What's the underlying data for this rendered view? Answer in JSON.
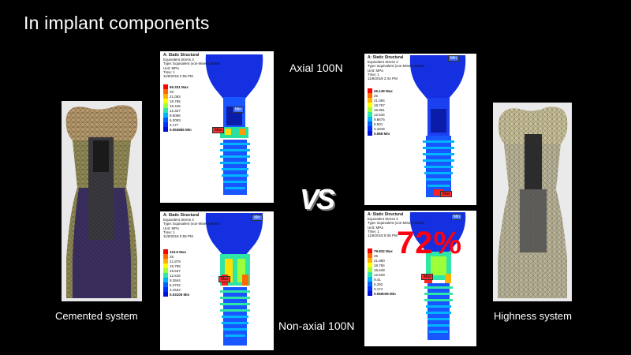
{
  "title": "In implant components",
  "captions": {
    "left": "Cemented system",
    "right": "Highness system"
  },
  "load_labels": {
    "axial": "Axial 100N",
    "non_axial": "Non-axial 100N"
  },
  "vs_label": "VS",
  "percent_label": "72%",
  "panels": {
    "tl": {
      "header": [
        "A: Static Structural",
        "Equivalent Stress 3",
        "Type: Equivalent (von-Mises) Stress",
        "Unit: MPa",
        "Time: 1",
        "11/8/2018 2:55 PM"
      ],
      "max": "65.331 Max",
      "levels": [
        "25",
        "21.083",
        "18.765",
        "15.445",
        "12.327",
        "9.6086",
        "6.2083",
        "3.177"
      ],
      "min": "0.053685 Min",
      "max_tag": "Max",
      "min_tag": "Min"
    },
    "tr": {
      "header": [
        "A: Static Structural",
        "Equivalent Stress 2",
        "Type: Equivalent (von-Mises) Stress",
        "Unit: MPa",
        "Time: 1",
        "11/8/2018 2:44 PM"
      ],
      "max": "26.149 Max",
      "levels": [
        "25",
        "21.084",
        "18.767",
        "15.851",
        "12.534",
        "9.8675",
        "6.501",
        "3.1849"
      ],
      "min": "0.068 Min",
      "max_tag": "Max",
      "min_tag": "Min"
    },
    "bl": {
      "header": [
        "A: Static Structural",
        "Equivalent Stress 3",
        "Type: Equivalent (von-Mises) Stress",
        "Unit: MPa",
        "Time: 1",
        "11/8/2018 5:55 PM"
      ],
      "max": "110.6 Max",
      "levels": [
        "25",
        "21.879",
        "18.758",
        "15.637",
        "12.516",
        "9.3944",
        "6.2733",
        "3.1522"
      ],
      "min": "0.03105 Min",
      "max_tag": "Max",
      "min_tag": "Min"
    },
    "br": {
      "header": [
        "A: Static Structural",
        "Equivalent Stress 2",
        "Type: Equivalent (von-Mises) Stress",
        "Unit: MPa",
        "Time: 1",
        "11/8/2018 5:05 PM"
      ],
      "max": "79.832 Max",
      "levels": [
        "25",
        "21.880",
        "18.784",
        "15.648",
        "12.529",
        "9.41",
        "6.292",
        "3.174"
      ],
      "min": "0.056039 Min",
      "max_tag": "Max",
      "min_tag": "Min"
    }
  },
  "colors": {
    "scale": [
      "#ff0000",
      "#ff6a00",
      "#ffb000",
      "#ffff00",
      "#9cff3a",
      "#2ee6a6",
      "#00b4ff",
      "#0060ff",
      "#0010d8"
    ]
  }
}
